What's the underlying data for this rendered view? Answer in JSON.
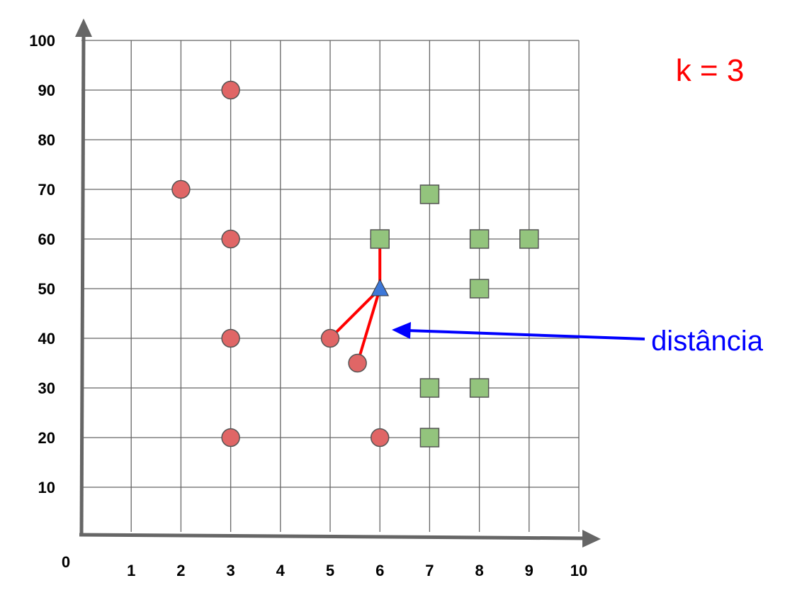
{
  "chart_data": {
    "type": "scatter",
    "x_ticks": [
      "1",
      "2",
      "3",
      "4",
      "5",
      "6",
      "7",
      "8",
      "9",
      "10"
    ],
    "y_ticks": [
      "10",
      "20",
      "30",
      "40",
      "50",
      "60",
      "70",
      "80",
      "90",
      "100"
    ],
    "origin_label": "0",
    "xlim": [
      0,
      10
    ],
    "ylim": [
      0,
      100
    ],
    "grid": true,
    "series": [
      {
        "marker": "circle",
        "color": "#e06666",
        "points": [
          {
            "x": 3,
            "y": 90
          },
          {
            "x": 2,
            "y": 70
          },
          {
            "x": 3,
            "y": 60
          },
          {
            "x": 3,
            "y": 40
          },
          {
            "x": 5,
            "y": 40
          },
          {
            "x": 5.55,
            "y": 35
          },
          {
            "x": 3,
            "y": 20
          },
          {
            "x": 6,
            "y": 20
          }
        ]
      },
      {
        "marker": "square",
        "color": "#93c47d",
        "points": [
          {
            "x": 7,
            "y": 69
          },
          {
            "x": 6,
            "y": 60
          },
          {
            "x": 8,
            "y": 60
          },
          {
            "x": 9,
            "y": 60
          },
          {
            "x": 8,
            "y": 50
          },
          {
            "x": 7,
            "y": 30
          },
          {
            "x": 8,
            "y": 30
          },
          {
            "x": 7,
            "y": 20
          }
        ]
      }
    ],
    "query_point": {
      "x": 6,
      "y": 50,
      "marker": "triangle",
      "color": "#3d78d8"
    },
    "neighbor_lines": [
      {
        "to": {
          "x": 6,
          "y": 60
        }
      },
      {
        "to": {
          "x": 5,
          "y": 40
        }
      },
      {
        "to": {
          "x": 5.55,
          "y": 35
        }
      }
    ],
    "neighbor_line_color": "#ff0000",
    "annotations": {
      "k_label": "k = 3",
      "k_color": "#ff0000",
      "arrow_label": "distância",
      "arrow_color": "#0000ff"
    }
  }
}
